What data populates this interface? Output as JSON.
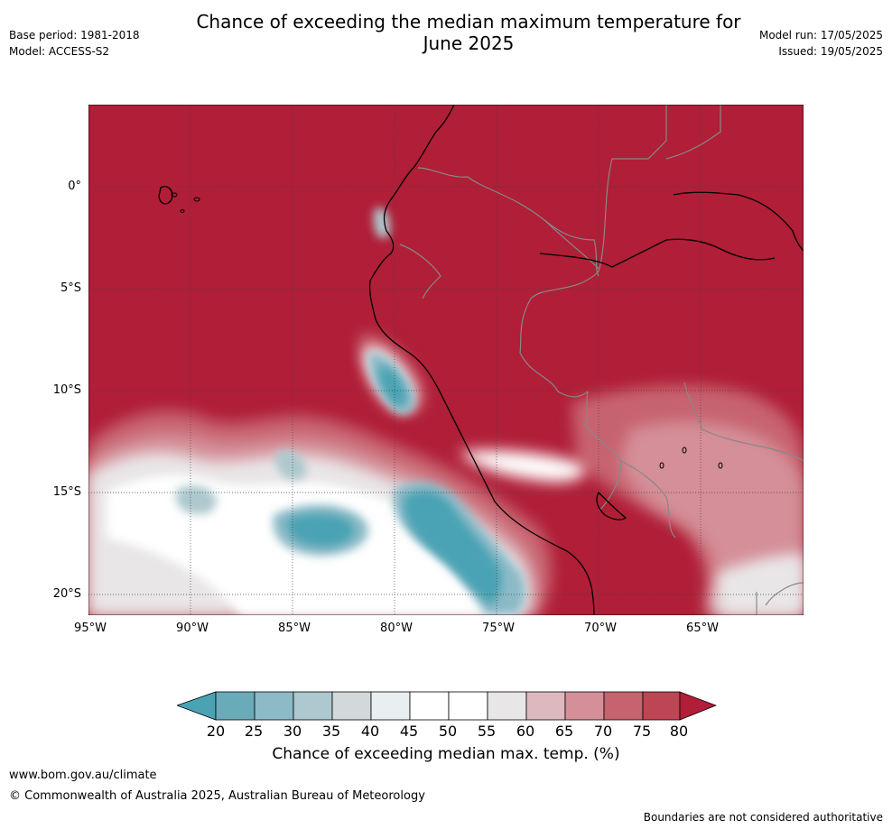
{
  "header": {
    "title_line1": "Chance of exceeding the median maximum temperature for",
    "title_line2": "June 2025",
    "base_period": "Base period: 1981-2018",
    "model": "Model: ACCESS-S2",
    "model_run": "Model run: 17/05/2025",
    "issued": "Issued: 19/05/2025"
  },
  "map": {
    "lat_labels": [
      "0°",
      "5°S",
      "10°S",
      "15°S",
      "20°S"
    ],
    "lon_labels": [
      "95°W",
      "90°W",
      "85°W",
      "80°W",
      "75°W",
      "70°W",
      "65°W"
    ]
  },
  "colorbar": {
    "ticks": [
      "20",
      "25",
      "30",
      "35",
      "40",
      "45",
      "50",
      "55",
      "60",
      "65",
      "70",
      "75",
      "80"
    ],
    "label": "Chance of exceeding median max. temp. (%)",
    "colors": [
      "#4aa3b4",
      "#6aabba",
      "#8cbac7",
      "#adc8ce",
      "#d3d8da",
      "#e9eef1",
      "#ffffff",
      "#ffffff",
      "#e9e6e8",
      "#ddb8bf",
      "#d48f98",
      "#c7636f",
      "#bc4653",
      "#b01e37"
    ]
  },
  "footer": {
    "url": "www.bom.gov.au/climate",
    "copyright": "© Commonwealth of Australia 2025, Australian Bureau of Meteorology",
    "disclaimer": "Boundaries are not considered authoritative"
  }
}
